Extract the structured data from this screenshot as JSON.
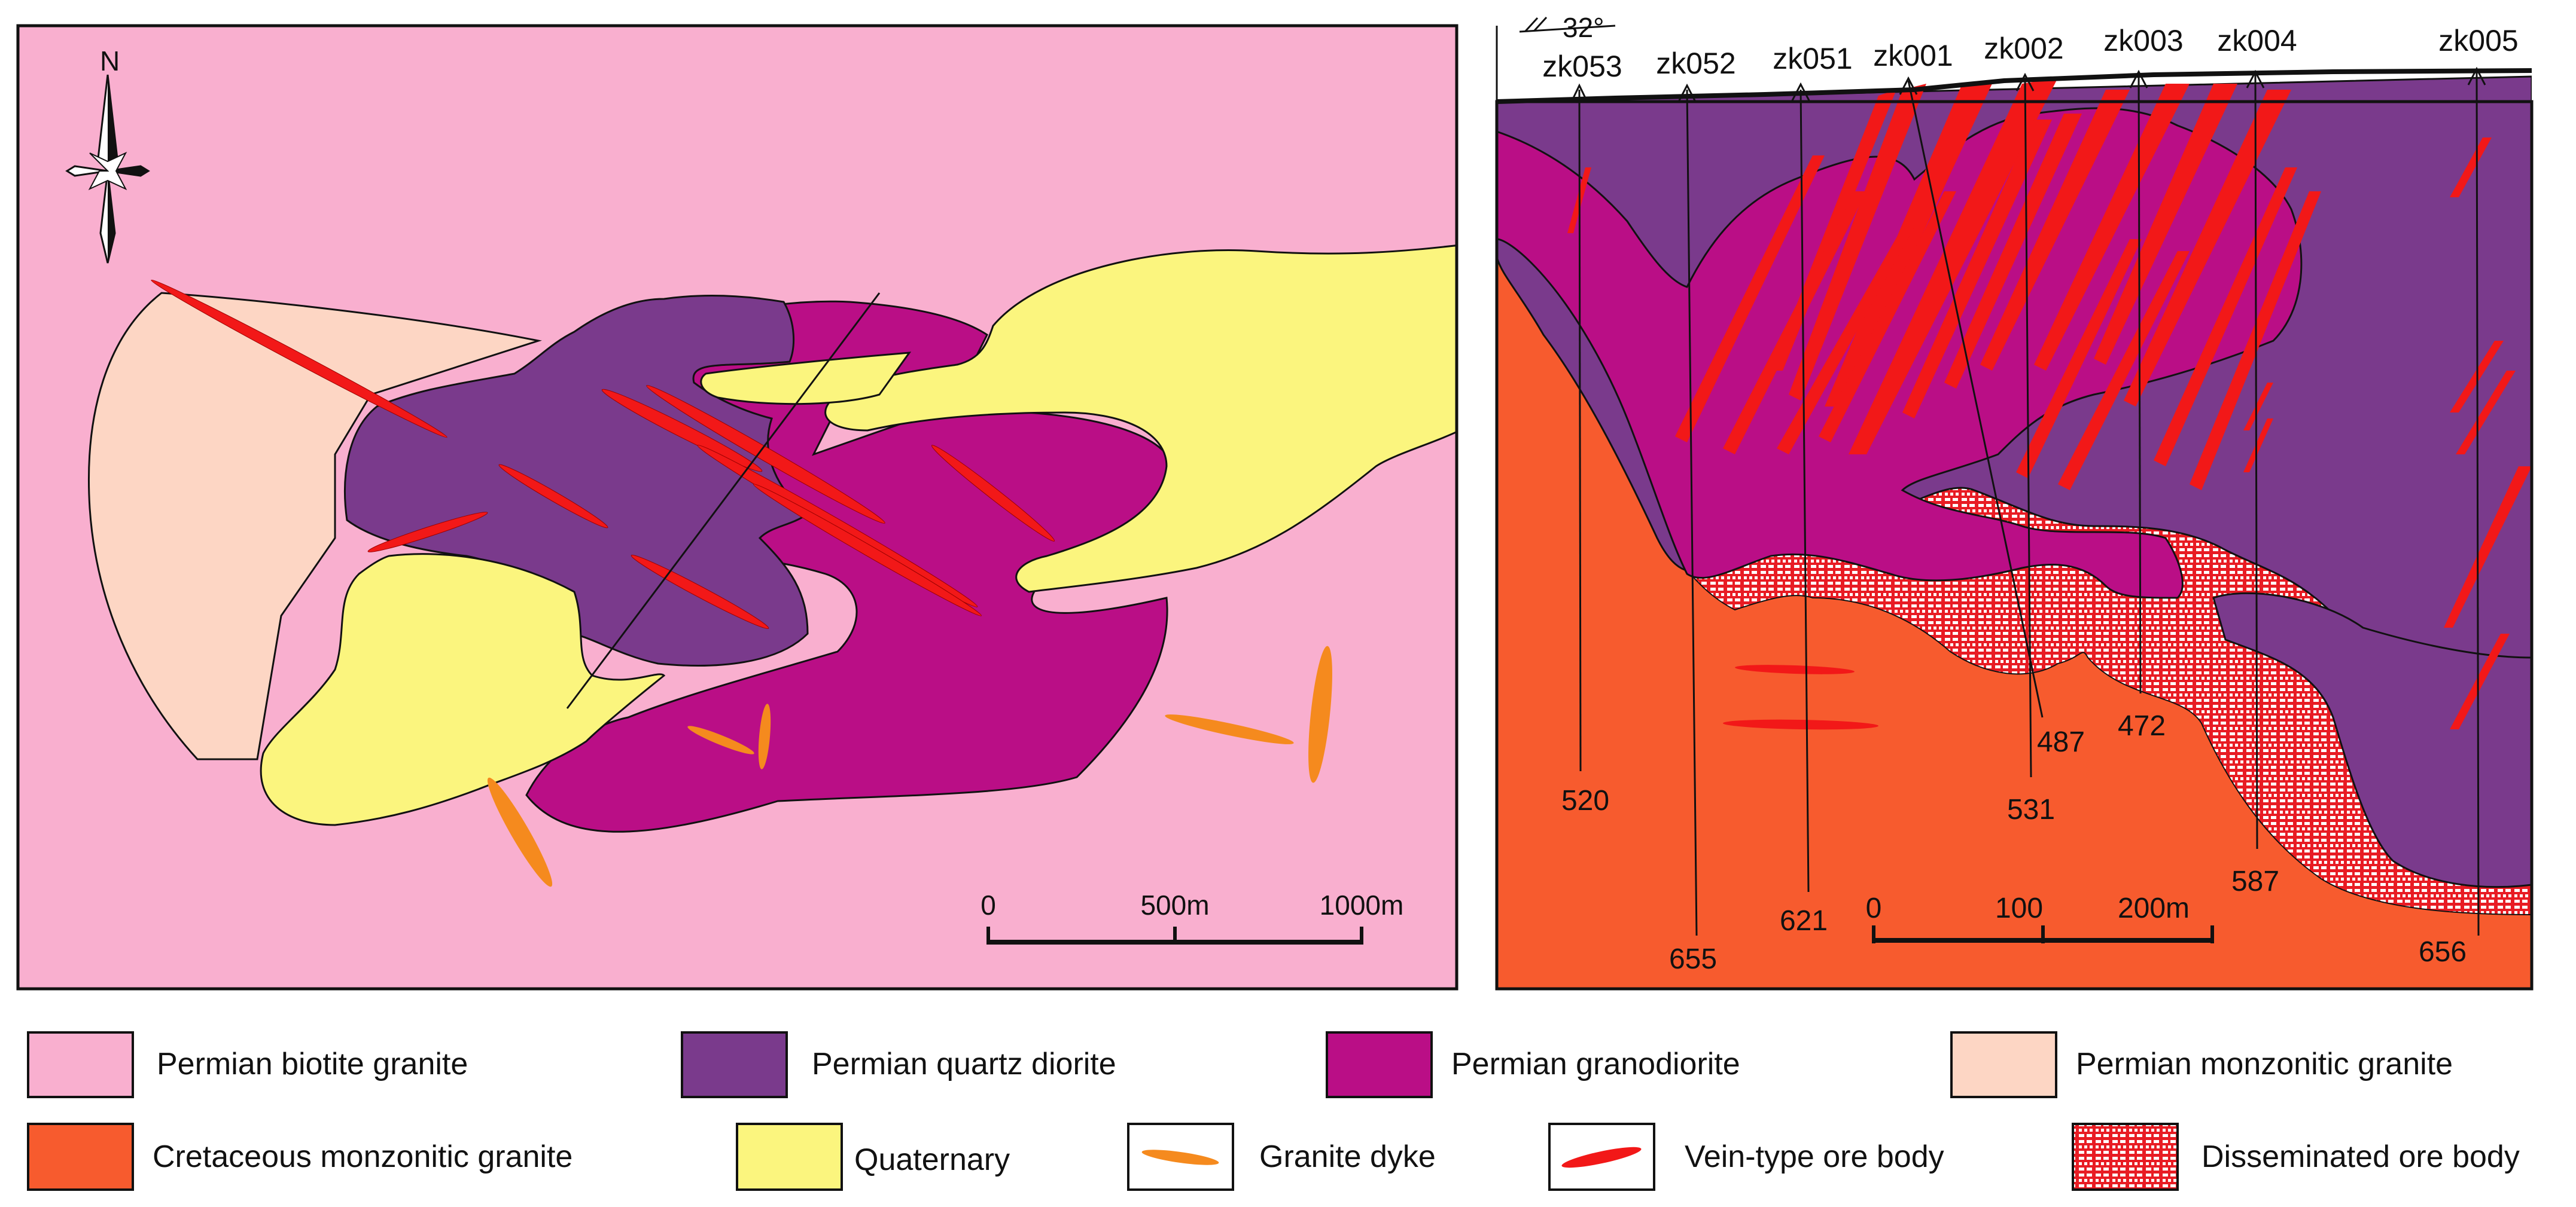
{
  "map": {
    "north_label": "N",
    "scale": {
      "ticks": [
        "0",
        "500m",
        "1000m"
      ]
    }
  },
  "section": {
    "strike_label": "32°",
    "drillholes": [
      {
        "id": "zk053",
        "depth": "520"
      },
      {
        "id": "zk052",
        "depth": "655"
      },
      {
        "id": "zk051",
        "depth": "621"
      },
      {
        "id": "zk001",
        "depth": "487"
      },
      {
        "id": "zk002",
        "depth": "531"
      },
      {
        "id": "zk003",
        "depth": "472"
      },
      {
        "id": "zk004",
        "depth": "587"
      },
      {
        "id": "zk005",
        "depth": "656"
      }
    ],
    "scale": {
      "ticks": [
        "0",
        "100",
        "200m"
      ]
    }
  },
  "legend": [
    {
      "label": "Permian biotite granite",
      "color": "#F9AFCF"
    },
    {
      "label": "Permian quartz diorite",
      "color": "#7A3A8C"
    },
    {
      "label": "Permian granodiorite",
      "color": "#BA0E86"
    },
    {
      "label": "Permian monzonitic granite",
      "color": "#FDD6C4"
    },
    {
      "label": "Cretaceous monzonitic granite",
      "color": "#F75B2E"
    },
    {
      "label": "Quaternary",
      "color": "#FBF57E"
    },
    {
      "label": "Granite dyke",
      "color": "#F58A1E"
    },
    {
      "label": "Vein-type ore body",
      "color": "#F21818"
    },
    {
      "label": "Disseminated ore body",
      "color": "#E81C24"
    }
  ]
}
